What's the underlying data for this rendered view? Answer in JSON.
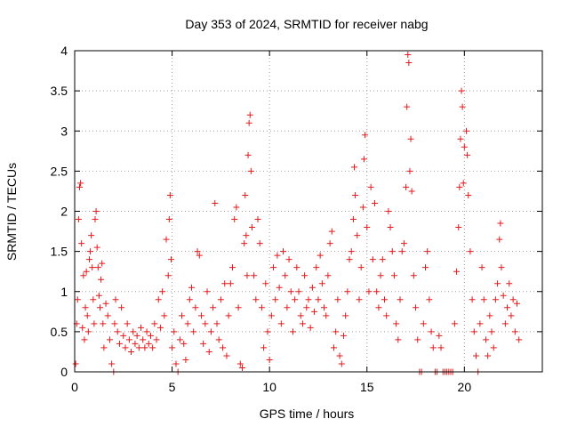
{
  "chart_data": {
    "type": "scatter",
    "title": "Day 353 of 2024, SRMTID for receiver nabg",
    "xlabel": "GPS time / hours",
    "ylabel": "SRMTID / TECUs",
    "xlim": [
      0,
      24
    ],
    "ylim": [
      0,
      4
    ],
    "xticks": [
      0,
      5,
      10,
      15,
      20
    ],
    "yticks": [
      0,
      0.5,
      1,
      1.5,
      2,
      2.5,
      3,
      3.5,
      4
    ],
    "xtick_labels": [
      "0",
      "5",
      "10",
      "15",
      "20"
    ],
    "ytick_labels": [
      "0",
      "0.5",
      "1",
      "1.5",
      "2",
      "2.5",
      "3",
      "3.5",
      "4"
    ],
    "grid": true,
    "marker": "+",
    "color": "#e41a1c",
    "series": [
      {
        "name": "SRMTID",
        "points": [
          [
            0.05,
            0.1
          ],
          [
            0.1,
            0.6
          ],
          [
            0.15,
            0.9
          ],
          [
            0.2,
            1.9
          ],
          [
            0.25,
            2.3
          ],
          [
            0.3,
            2.35
          ],
          [
            0.35,
            1.6
          ],
          [
            0.4,
            0.55
          ],
          [
            0.45,
            1.2
          ],
          [
            0.5,
            0.4
          ],
          [
            0.55,
            0.8
          ],
          [
            0.6,
            1.25
          ],
          [
            0.65,
            0.7
          ],
          [
            0.7,
            0.5
          ],
          [
            0.75,
            1.4
          ],
          [
            0.8,
            1.5
          ],
          [
            0.85,
            1.7
          ],
          [
            0.9,
            1.3
          ],
          [
            0.95,
            0.9
          ],
          [
            1.0,
            0.6
          ],
          [
            1.05,
            1.9
          ],
          [
            1.1,
            2.0
          ],
          [
            1.15,
            1.55
          ],
          [
            1.2,
            1.3
          ],
          [
            1.25,
            0.95
          ],
          [
            1.3,
            0.8
          ],
          [
            1.35,
            1.15
          ],
          [
            1.4,
            1.35
          ],
          [
            1.45,
            0.6
          ],
          [
            1.5,
            0.3
          ],
          [
            1.6,
            0.85
          ],
          [
            1.7,
            0.7
          ],
          [
            1.8,
            0.4
          ],
          [
            1.9,
            0.1
          ],
          [
            2.0,
            0.0
          ],
          [
            2.05,
            0.6
          ],
          [
            2.1,
            0.9
          ],
          [
            2.2,
            0.5
          ],
          [
            2.3,
            0.35
          ],
          [
            2.4,
            0.8
          ],
          [
            2.5,
            0.45
          ],
          [
            2.6,
            0.3
          ],
          [
            2.7,
            0.6
          ],
          [
            2.8,
            0.4
          ],
          [
            2.9,
            0.25
          ],
          [
            3.0,
            0.5
          ],
          [
            3.1,
            0.35
          ],
          [
            3.2,
            0.45
          ],
          [
            3.3,
            0.3
          ],
          [
            3.4,
            0.55
          ],
          [
            3.5,
            0.4
          ],
          [
            3.6,
            0.3
          ],
          [
            3.7,
            0.5
          ],
          [
            3.8,
            0.35
          ],
          [
            3.9,
            0.45
          ],
          [
            4.0,
            0.3
          ],
          [
            4.1,
            0.6
          ],
          [
            4.2,
            0.4
          ],
          [
            4.3,
            0.9
          ],
          [
            4.4,
            0.55
          ],
          [
            4.5,
            1.0
          ],
          [
            4.6,
            0.7
          ],
          [
            4.7,
            1.65
          ],
          [
            4.8,
            1.2
          ],
          [
            4.85,
            1.9
          ],
          [
            4.9,
            2.2
          ],
          [
            4.95,
            1.4
          ],
          [
            5.0,
            0.3
          ],
          [
            5.1,
            0.5
          ],
          [
            5.2,
            0.1
          ],
          [
            5.3,
            0.0
          ],
          [
            5.4,
            0.4
          ],
          [
            5.5,
            0.7
          ],
          [
            5.6,
            0.35
          ],
          [
            5.7,
            0.15
          ],
          [
            5.8,
            0.6
          ],
          [
            5.9,
            0.9
          ],
          [
            6.0,
            1.05
          ],
          [
            6.1,
            0.5
          ],
          [
            6.2,
            0.8
          ],
          [
            6.3,
            1.5
          ],
          [
            6.4,
            1.45
          ],
          [
            6.5,
            0.7
          ],
          [
            6.6,
            0.35
          ],
          [
            6.7,
            0.6
          ],
          [
            6.8,
            1.0
          ],
          [
            6.9,
            0.25
          ],
          [
            7.0,
            0.5
          ],
          [
            7.1,
            0.8
          ],
          [
            7.2,
            2.1
          ],
          [
            7.3,
            0.6
          ],
          [
            7.4,
            0.4
          ],
          [
            7.5,
            0.9
          ],
          [
            7.6,
            0.3
          ],
          [
            7.7,
            1.1
          ],
          [
            7.8,
            0.2
          ],
          [
            7.9,
            0.7
          ],
          [
            8.0,
            1.1
          ],
          [
            8.1,
            1.3
          ],
          [
            8.2,
            1.9
          ],
          [
            8.3,
            2.05
          ],
          [
            8.4,
            0.8
          ],
          [
            8.5,
            0.1
          ],
          [
            8.6,
            0.05
          ],
          [
            8.7,
            1.6
          ],
          [
            8.75,
            2.2
          ],
          [
            8.8,
            1.7
          ],
          [
            8.85,
            1.2
          ],
          [
            8.9,
            2.7
          ],
          [
            8.95,
            3.1
          ],
          [
            9.0,
            3.2
          ],
          [
            9.05,
            2.5
          ],
          [
            9.1,
            1.8
          ],
          [
            9.2,
            1.2
          ],
          [
            9.3,
            0.9
          ],
          [
            9.4,
            1.9
          ],
          [
            9.5,
            1.6
          ],
          [
            9.6,
            0.8
          ],
          [
            9.7,
            0.3
          ],
          [
            9.8,
            1.1
          ],
          [
            9.9,
            0.5
          ],
          [
            10.0,
            0.15
          ],
          [
            10.1,
            0.7
          ],
          [
            10.2,
            1.3
          ],
          [
            10.3,
            0.9
          ],
          [
            10.4,
            1.45
          ],
          [
            10.5,
            1.05
          ],
          [
            10.6,
            0.6
          ],
          [
            10.7,
            1.5
          ],
          [
            10.8,
            1.2
          ],
          [
            10.9,
            0.8
          ],
          [
            11.0,
            1.4
          ],
          [
            11.1,
            1.0
          ],
          [
            11.2,
            0.5
          ],
          [
            11.3,
            0.9
          ],
          [
            11.4,
            1.3
          ],
          [
            11.5,
            1.0
          ],
          [
            11.6,
            0.7
          ],
          [
            11.7,
            0.6
          ],
          [
            11.8,
            1.2
          ],
          [
            11.9,
            0.8
          ],
          [
            12.0,
            0.9
          ],
          [
            12.1,
            0.55
          ],
          [
            12.2,
            1.05
          ],
          [
            12.3,
            0.75
          ],
          [
            12.4,
            1.3
          ],
          [
            12.5,
            0.9
          ],
          [
            12.6,
            1.45
          ],
          [
            12.7,
            1.1
          ],
          [
            12.8,
            0.8
          ],
          [
            12.9,
            0.7
          ],
          [
            13.0,
            1.2
          ],
          [
            13.1,
            1.6
          ],
          [
            13.2,
            1.75
          ],
          [
            13.3,
            0.3
          ],
          [
            13.4,
            0.5
          ],
          [
            13.5,
            0.9
          ],
          [
            13.6,
            0.2
          ],
          [
            13.7,
            0.1
          ],
          [
            13.8,
            0.45
          ],
          [
            13.9,
            0.7
          ],
          [
            14.0,
            1.0
          ],
          [
            14.1,
            1.4
          ],
          [
            14.2,
            1.5
          ],
          [
            14.3,
            1.9
          ],
          [
            14.35,
            2.55
          ],
          [
            14.4,
            2.2
          ],
          [
            14.5,
            1.7
          ],
          [
            14.6,
            0.9
          ],
          [
            14.7,
            1.3
          ],
          [
            14.8,
            2.05
          ],
          [
            14.85,
            2.65
          ],
          [
            14.9,
            2.95
          ],
          [
            15.0,
            1.8
          ],
          [
            15.1,
            1.0
          ],
          [
            15.2,
            2.3
          ],
          [
            15.3,
            1.4
          ],
          [
            15.4,
            2.1
          ],
          [
            15.5,
            1.0
          ],
          [
            15.6,
            0.8
          ],
          [
            15.7,
            1.2
          ],
          [
            15.8,
            1.4
          ],
          [
            15.9,
            0.9
          ],
          [
            16.0,
            0.7
          ],
          [
            16.1,
            2.0
          ],
          [
            16.2,
            1.8
          ],
          [
            16.3,
            1.5
          ],
          [
            16.4,
            1.2
          ],
          [
            16.5,
            0.6
          ],
          [
            16.6,
            0.4
          ],
          [
            16.7,
            0.9
          ],
          [
            16.8,
            1.5
          ],
          [
            16.9,
            1.6
          ],
          [
            17.0,
            2.3
          ],
          [
            17.05,
            3.3
          ],
          [
            17.1,
            3.95
          ],
          [
            17.15,
            3.85
          ],
          [
            17.2,
            2.5
          ],
          [
            17.25,
            2.9
          ],
          [
            17.3,
            2.25
          ],
          [
            17.4,
            1.2
          ],
          [
            17.5,
            0.8
          ],
          [
            17.6,
            0.4
          ],
          [
            17.7,
            0.0
          ],
          [
            17.8,
            0.0
          ],
          [
            17.9,
            0.6
          ],
          [
            18.0,
            1.3
          ],
          [
            18.1,
            1.5
          ],
          [
            18.2,
            0.9
          ],
          [
            18.3,
            0.5
          ],
          [
            18.4,
            0.3
          ],
          [
            18.5,
            0.0
          ],
          [
            18.6,
            0.0
          ],
          [
            18.7,
            0.45
          ],
          [
            18.8,
            0.3
          ],
          [
            18.9,
            0.0
          ],
          [
            19.0,
            0.0
          ],
          [
            19.1,
            0.0
          ],
          [
            19.2,
            0.0
          ],
          [
            19.3,
            0.0
          ],
          [
            19.4,
            0.0
          ],
          [
            19.5,
            0.6
          ],
          [
            19.6,
            1.25
          ],
          [
            19.7,
            1.8
          ],
          [
            19.75,
            2.3
          ],
          [
            19.8,
            2.9
          ],
          [
            19.85,
            3.5
          ],
          [
            19.9,
            3.3
          ],
          [
            19.95,
            2.35
          ],
          [
            20.0,
            2.8
          ],
          [
            20.1,
            3.0
          ],
          [
            20.15,
            2.7
          ],
          [
            20.2,
            2.2
          ],
          [
            20.3,
            1.5
          ],
          [
            20.4,
            0.9
          ],
          [
            20.5,
            0.5
          ],
          [
            20.6,
            0.2
          ],
          [
            20.7,
            0.0
          ],
          [
            20.8,
            0.6
          ],
          [
            20.9,
            1.3
          ],
          [
            21.0,
            0.9
          ],
          [
            21.1,
            0.4
          ],
          [
            21.2,
            0.2
          ],
          [
            21.3,
            0.7
          ],
          [
            21.4,
            0.5
          ],
          [
            21.5,
            0.3
          ],
          [
            21.6,
            0.9
          ],
          [
            21.7,
            1.1
          ],
          [
            21.8,
            1.65
          ],
          [
            21.85,
            1.85
          ],
          [
            21.9,
            1.3
          ],
          [
            22.0,
            0.95
          ],
          [
            22.1,
            0.6
          ],
          [
            22.2,
            0.8
          ],
          [
            22.3,
            1.1
          ],
          [
            22.4,
            0.7
          ],
          [
            22.5,
            0.9
          ],
          [
            22.6,
            0.5
          ],
          [
            22.7,
            0.85
          ],
          [
            22.8,
            0.4
          ]
        ]
      }
    ]
  }
}
